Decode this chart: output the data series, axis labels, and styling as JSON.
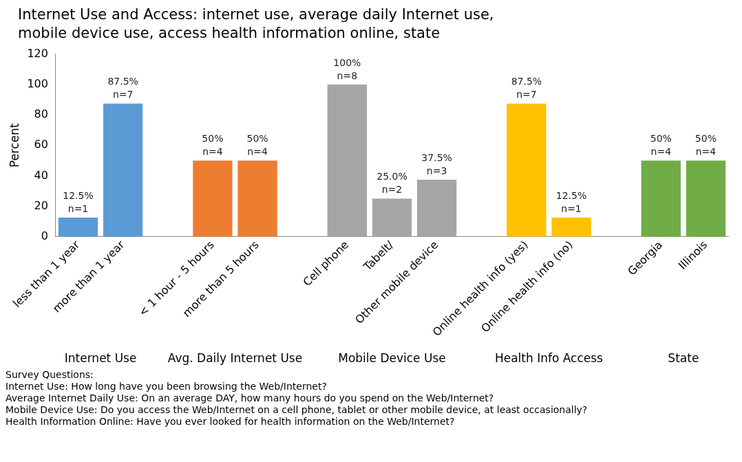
{
  "chart_data": {
    "type": "bar",
    "title": "Internet Use and Access: internet use, average daily Internet use, mobile device use, access health information online, state",
    "ylabel": "Percent",
    "categories": [
      "less than 1 year",
      "more than 1 year",
      null,
      "< 1 hour - 5 hours",
      "more than 5 hours",
      null,
      "Cell phone",
      "Tabelt/",
      "Other mobile device",
      null,
      "Online health info (yes)",
      "Online health info (no)",
      null,
      "Georgia",
      "Illinois"
    ],
    "values": [
      12.5,
      87.5,
      null,
      50,
      50,
      null,
      100,
      25,
      37.5,
      null,
      87.5,
      12.5,
      null,
      50,
      50
    ],
    "colors": [
      "#5b9bd5",
      "#5b9bd5",
      null,
      "#ed7d31",
      "#ed7d31",
      null,
      "#a5a5a5",
      "#a5a5a5",
      "#a5a5a5",
      null,
      "#ffc000",
      "#ffc000",
      null,
      "#70ad47",
      "#70ad47"
    ],
    "value_labels": [
      "12.5%\nn=1",
      "87.5%\nn=7",
      null,
      "50%\nn=4",
      "50%\nn=4",
      null,
      "100%\nn=8",
      "25.0%\nn=2",
      "37.5%\nn=3",
      null,
      "87.5%\nn=7",
      "12.5%\nn=1",
      null,
      "50%\nn=4",
      "50%\nn=4"
    ],
    "ylim": [
      0,
      120
    ],
    "yticks": [
      0,
      20,
      40,
      60,
      80,
      100,
      120
    ],
    "grid": false,
    "legend": false,
    "annotations": [
      "Internet Use",
      "Avg. Daily Internet Use",
      "Mobile Device Use",
      "Health Info Access",
      "State",
      "Survey Questions:",
      "Internet Use: How long have you been browsing the Web/Internet?",
      "Average Internet Daily Use: On an average DAY, how many hours do you spend on the Web/Internet?",
      "Mobile Device Use: Do you access the Web/Internet on a cell phone, tablet or other mobile device, at least occasionally?",
      "Health Information Online: Have you ever looked for health information on the Web/Internet?"
    ]
  }
}
